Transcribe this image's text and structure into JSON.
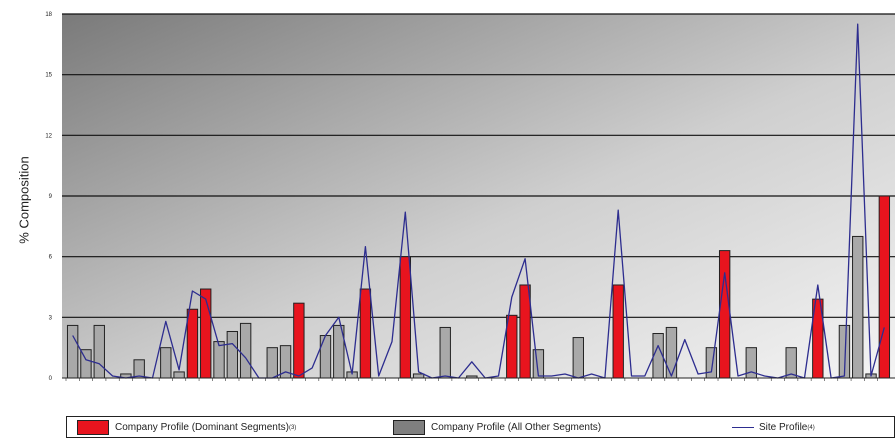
{
  "chart_data": {
    "type": "bar",
    "ylabel": "% Composition",
    "ylim": [
      0,
      18
    ],
    "yticks": [
      "0",
      "3",
      "6",
      "9",
      "12",
      "15",
      "18"
    ],
    "grid": true,
    "legend_placement": "bottom",
    "colors": {
      "dominant": "#e8141e",
      "other": "#a9a9a9",
      "site": "#2d2d8f"
    },
    "series": [
      {
        "name": "Company Profile (Dominant Segments)",
        "name_sup": "(3)",
        "values": [
          0,
          0,
          0,
          0,
          0,
          0,
          0,
          0,
          0,
          3.4,
          4.4,
          0,
          0,
          0,
          0,
          0,
          0,
          3.7,
          0,
          0,
          0,
          0,
          4.4,
          0,
          0,
          6.0,
          0,
          0,
          0,
          0,
          0,
          0,
          0,
          3.1,
          4.6,
          0,
          0,
          0,
          0,
          0,
          0,
          4.6,
          0,
          0,
          0,
          0,
          0,
          0,
          0,
          6.3,
          0,
          0,
          0,
          0,
          0,
          0,
          3.9,
          0,
          0,
          0,
          0,
          9.0
        ]
      },
      {
        "name": "Company Profile (All Other Segments)",
        "values": [
          2.6,
          1.4,
          2.6,
          0,
          0.2,
          0.9,
          0,
          1.5,
          0.3,
          0,
          0,
          1.8,
          2.3,
          2.7,
          0,
          1.5,
          1.6,
          0,
          0,
          2.1,
          2.6,
          0.3,
          0,
          0,
          0,
          0,
          0.2,
          0,
          2.5,
          0,
          0.1,
          0,
          0,
          0,
          0,
          1.4,
          0,
          0,
          2.0,
          0,
          0,
          0,
          0,
          0,
          2.2,
          2.5,
          0,
          0,
          1.5,
          0,
          0,
          1.5,
          0,
          0,
          1.5,
          0,
          0,
          0,
          2.6,
          7.0,
          0.2,
          0
        ]
      },
      {
        "name": "Site Profile",
        "name_sup": "(4)",
        "values": [
          2.1,
          0.9,
          0.7,
          0.1,
          0,
          0.1,
          0,
          2.8,
          0.4,
          4.3,
          3.9,
          1.6,
          1.7,
          1.0,
          0,
          0,
          0.3,
          0.1,
          0.5,
          2.1,
          3.0,
          0.2,
          6.5,
          0.1,
          1.8,
          8.2,
          0.3,
          0,
          0.1,
          0,
          0.8,
          0,
          0.1,
          4.0,
          5.9,
          0.1,
          0.1,
          0.2,
          0,
          0.2,
          0,
          8.3,
          0.1,
          0.1,
          1.6,
          0.1,
          1.9,
          0.2,
          0.3,
          5.2,
          0.1,
          0.3,
          0.1,
          0,
          0.2,
          0,
          4.6,
          0,
          0.1,
          17.5,
          0.1,
          2.5
        ]
      }
    ]
  }
}
